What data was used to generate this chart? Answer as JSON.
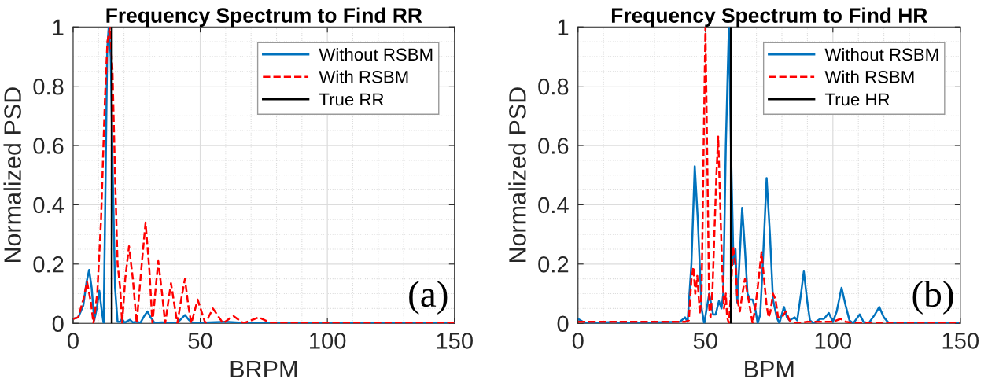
{
  "chart_data": [
    {
      "type": "line",
      "title": "Frequency Spectrum to Find RR",
      "xlabel": "BRPM",
      "ylabel": "Normalized PSD",
      "xlim": [
        0,
        150
      ],
      "xticks": [
        0,
        50,
        100,
        150
      ],
      "ylim": [
        0,
        1
      ],
      "yticks": [
        0,
        0.2,
        0.4,
        0.6,
        0.8,
        1
      ],
      "grid": true,
      "legend": "top right",
      "series": [
        {
          "name": "Without RSBM",
          "color": "#0072bd",
          "line_style": "solid",
          "x": [
            0,
            2,
            4,
            5.3,
            6.3,
            7.3,
            8.3,
            9.3,
            10.3,
            11.3,
            12,
            12.8,
            13.4,
            14,
            14.8,
            15.6,
            16.5,
            17.5,
            18.5,
            19.2,
            20.3,
            21.5,
            22.4,
            23.5,
            25,
            26.5,
            28,
            29.2,
            30.5,
            32,
            35,
            38,
            41,
            42.5,
            44,
            45.5,
            47,
            50,
            60,
            70,
            100,
            150
          ],
          "values": [
            0.015,
            0.02,
            0.06,
            0.14,
            0.18,
            0.12,
            0.01,
            0.05,
            0.11,
            0.04,
            0.0,
            0.5,
            0.92,
            1.0,
            0.9,
            0.5,
            0.12,
            0.005,
            0.005,
            0.015,
            0.002,
            0.008,
            0.012,
            0.003,
            0.005,
            0.002,
            0.025,
            0.04,
            0.02,
            0.002,
            0.003,
            0.002,
            0.002,
            0.015,
            0.028,
            0.012,
            0.002,
            0.002,
            0.005,
            0.0,
            0.0,
            0.0
          ]
        },
        {
          "name": "With RSBM",
          "color": "#ff0000",
          "line_style": "dashed",
          "x": [
            0,
            2,
            4,
            5.5,
            7,
            8,
            9.5,
            11,
            12.5,
            13.5,
            14.5,
            15.5,
            16.5,
            17.5,
            18.5,
            19.3,
            20.5,
            22,
            23.5,
            25,
            27,
            28.5,
            30,
            31.2,
            32.5,
            33.5,
            35,
            36.2,
            38.5,
            41,
            42.5,
            44,
            45.3,
            46.5,
            49,
            52,
            55,
            59,
            63,
            67,
            73,
            78,
            90,
            150
          ],
          "values": [
            0.015,
            0.02,
            0.08,
            0.14,
            0.07,
            0.0,
            0.1,
            0.35,
            0.75,
            0.95,
            1.0,
            0.85,
            0.5,
            0.2,
            0.12,
            0.0,
            0.15,
            0.26,
            0.15,
            0.0,
            0.2,
            0.34,
            0.18,
            0.0,
            0.12,
            0.21,
            0.1,
            0.0,
            0.135,
            0.0,
            0.08,
            0.15,
            0.06,
            0.0,
            0.08,
            0.0,
            0.05,
            0.0,
            0.025,
            0.0,
            0.02,
            0.0,
            0.0,
            0.0
          ]
        },
        {
          "name": "True RR",
          "color": "#000000",
          "line_style": "solid",
          "x": [
            15.2,
            15.2
          ],
          "values": [
            0,
            1
          ]
        }
      ],
      "annotations": [
        "(a)"
      ]
    },
    {
      "type": "line",
      "title": "Frequency Spectrum to Find HR",
      "xlabel": "BPM",
      "ylabel": "Normalized PSD",
      "xlim": [
        0,
        150
      ],
      "xticks": [
        0,
        50,
        100,
        150
      ],
      "ylim": [
        0,
        1
      ],
      "yticks": [
        0,
        0.2,
        0.4,
        0.6,
        0.8,
        1
      ],
      "grid": true,
      "legend": "top right",
      "series": [
        {
          "name": "Without RSBM",
          "color": "#0072bd",
          "line_style": "solid",
          "x": [
            0,
            2,
            4,
            15,
            16,
            40,
            42,
            43,
            44.5,
            45.8,
            47,
            48.5,
            49.5,
            51.5,
            53,
            54,
            55.3,
            56.3,
            57,
            58,
            59.2,
            60,
            61,
            61.8,
            62.5,
            63.3,
            64.4,
            65.5,
            66.5,
            67.5,
            68.5,
            69.5,
            70.5,
            71.5,
            72.5,
            74,
            75.3,
            76.5,
            78,
            79,
            80.8,
            82,
            83,
            84,
            85,
            86,
            87.5,
            88.6,
            90,
            91,
            92.5,
            95,
            96.5,
            98.4,
            100,
            101.5,
            103.4,
            105,
            106.5,
            108,
            110.5,
            112,
            114,
            116.5,
            118.2,
            120,
            122,
            150
          ],
          "values": [
            0.015,
            0.005,
            0.0,
            0.005,
            0.0,
            0.005,
            0.02,
            0.005,
            0.2,
            0.53,
            0.35,
            0.05,
            0.0,
            0.1,
            0.03,
            0.03,
            0.075,
            0.05,
            0.1,
            0.6,
            1.0,
            0.6,
            0.2,
            0.25,
            0.07,
            0.2,
            0.39,
            0.25,
            0.1,
            0.08,
            0.08,
            0.05,
            0.0,
            0.03,
            0.2,
            0.49,
            0.3,
            0.08,
            0.02,
            0.0,
            0.055,
            0.02,
            0.01,
            0.015,
            0.02,
            0.01,
            0.1,
            0.175,
            0.07,
            0.01,
            0.0,
            0.015,
            0.015,
            0.035,
            0.005,
            0.04,
            0.12,
            0.06,
            0.01,
            0.0,
            0.03,
            0.005,
            0.0,
            0.03,
            0.055,
            0.02,
            0.0,
            0.0
          ]
        },
        {
          "name": "With RSBM",
          "color": "#ff0000",
          "line_style": "dashed",
          "x": [
            0,
            42,
            43.5,
            44.5,
            45.3,
            46,
            46.8,
            47.8,
            48.5,
            49.3,
            50,
            50.8,
            51.5,
            52,
            52.8,
            53.5,
            54.3,
            55,
            55.8,
            56.5,
            57.3,
            58,
            58.5,
            59.2,
            60,
            60.8,
            61.8,
            62.5,
            63.5,
            64.5,
            65.5,
            66.5,
            67.5,
            68.5,
            69.5,
            70.5,
            72,
            73,
            74,
            74.8,
            75.5,
            76.5,
            77.5,
            78.5,
            80,
            81.5,
            83,
            85,
            90,
            100,
            103,
            105,
            110,
            150
          ],
          "values": [
            0.005,
            0.005,
            0.01,
            0.15,
            0.19,
            0.1,
            0.16,
            0.03,
            0.1,
            0.6,
            1.0,
            0.5,
            0.05,
            0.02,
            0.12,
            0.3,
            0.5,
            0.63,
            0.4,
            0.2,
            0.05,
            0.1,
            0.02,
            0.0,
            0.1,
            0.26,
            0.2,
            0.08,
            0.04,
            0.1,
            0.15,
            0.1,
            0.05,
            0.0,
            0.05,
            0.12,
            0.24,
            0.15,
            0.06,
            0.02,
            0.04,
            0.1,
            0.08,
            0.02,
            0.02,
            0.04,
            0.01,
            0.0,
            0.005,
            0.005,
            0.015,
            0.005,
            0.0,
            0.0
          ]
        },
        {
          "name": "True HR",
          "color": "#000000",
          "line_style": "solid",
          "x": [
            60,
            60
          ],
          "values": [
            0,
            1
          ]
        }
      ],
      "annotations": [
        "(b)"
      ]
    }
  ]
}
